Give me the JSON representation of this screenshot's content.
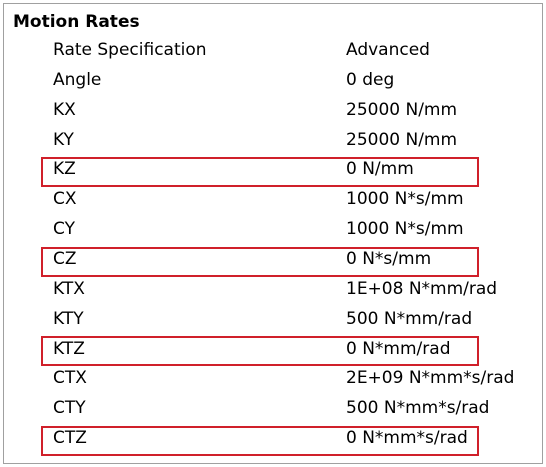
{
  "header": {
    "title": "Motion Rates"
  },
  "rows": [
    [
      "Rate Specification",
      "Advanced"
    ],
    [
      "Angle",
      "0 deg"
    ],
    [
      "KX",
      "25000 N/mm"
    ],
    [
      "KY",
      "25000 N/mm"
    ],
    [
      "KZ",
      "0 N/mm"
    ],
    [
      "CX",
      "1000 N*s/mm"
    ],
    [
      "CY",
      "1000 N*s/mm"
    ],
    [
      "CZ",
      "0 N*s/mm"
    ],
    [
      "KTX",
      "1E+08 N*mm/rad"
    ],
    [
      "KTY",
      "500 N*mm/rad"
    ],
    [
      "KTZ",
      "0 N*mm/rad"
    ],
    [
      "CTX",
      "2E+09 N*mm*s/rad"
    ],
    [
      "CTY",
      "500 N*mm*s/rad"
    ],
    [
      "CTZ",
      "0 N*mm*s/rad"
    ]
  ]
}
